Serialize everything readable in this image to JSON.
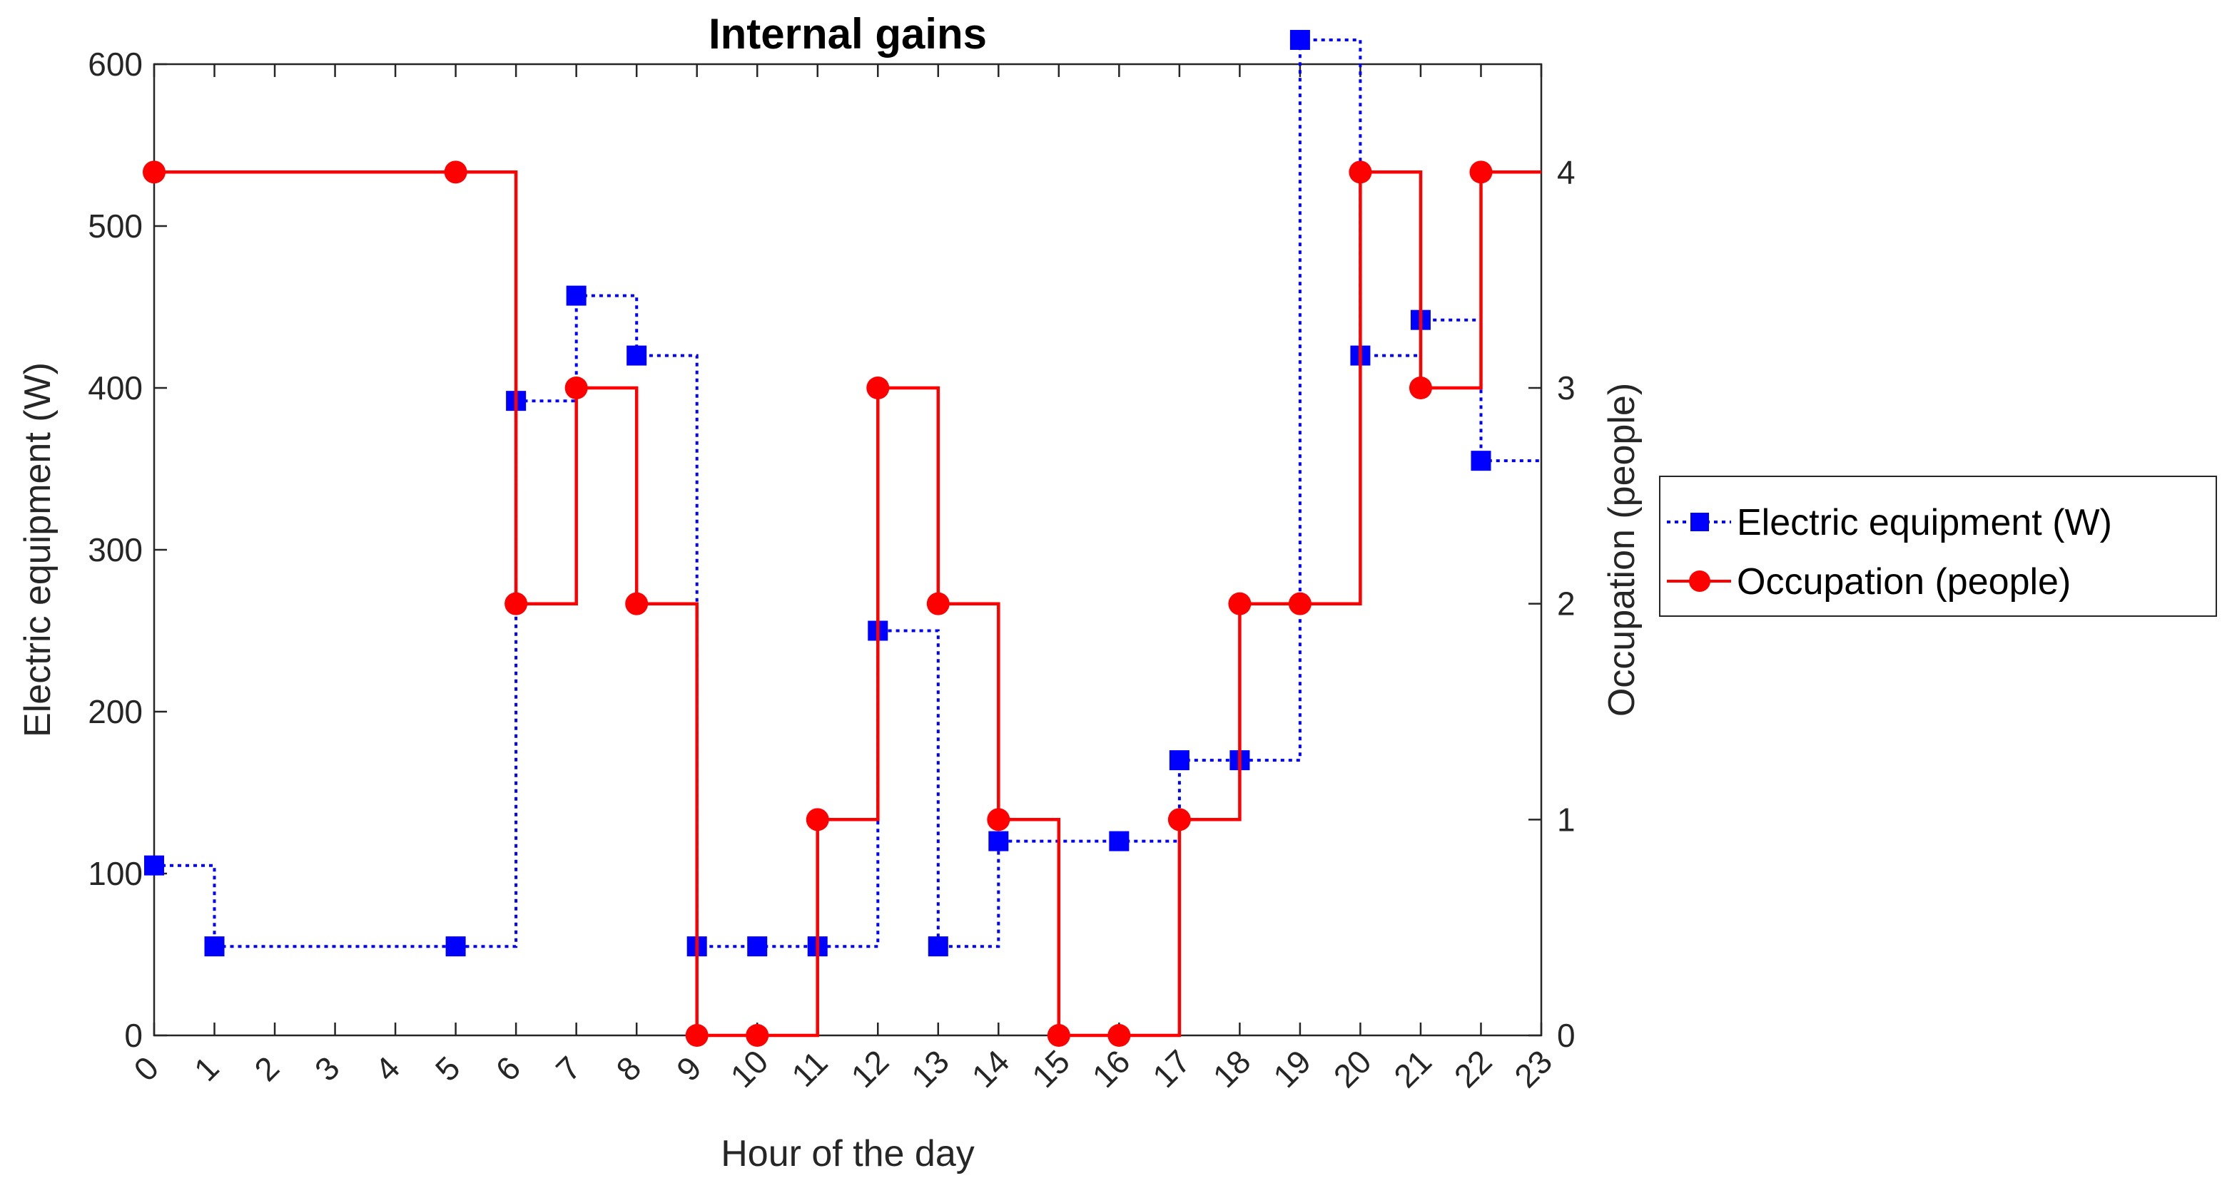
{
  "chart_data": {
    "type": "line",
    "title": "Internal gains",
    "xlabel": "Hour of the day",
    "ylabel_left": "Electric equipment (W)",
    "ylabel_right": "Occupation (people)",
    "xlim": [
      0,
      23
    ],
    "ylim_left": [
      0,
      600
    ],
    "ylim_right": [
      0,
      4.5
    ],
    "yticks_left": [
      "0",
      "100",
      "200",
      "300",
      "400",
      "500",
      "600"
    ],
    "yticks_right": [
      "0",
      "1",
      "2",
      "3",
      "4"
    ],
    "xticks": [
      "0",
      "1",
      "2",
      "3",
      "4",
      "5",
      "6",
      "7",
      "8",
      "9",
      "10",
      "11",
      "12",
      "13",
      "14",
      "15",
      "16",
      "17",
      "18",
      "19",
      "20",
      "21",
      "22",
      "23"
    ],
    "grid": false,
    "legend_position": "outside-right",
    "series": [
      {
        "name": "Electric equipment (W)",
        "axis": "left",
        "style": "dotted",
        "marker": "square",
        "color": "#0000ff",
        "hours": [
          0,
          1,
          6,
          7,
          8,
          9,
          11,
          12,
          13,
          14,
          17,
          19,
          20,
          21,
          22
        ],
        "values": [
          105,
          55,
          392,
          457,
          420,
          55,
          55,
          250,
          55,
          120,
          170,
          615,
          420,
          442,
          355
        ]
      },
      {
        "name": "Occupation (people)",
        "axis": "right",
        "style": "solid",
        "marker": "circle",
        "color": "#ff0000",
        "hours": [
          0,
          6,
          7,
          8,
          9,
          11,
          12,
          13,
          14,
          15,
          17,
          18,
          20,
          21,
          22
        ],
        "values": [
          4,
          2,
          3,
          2,
          0,
          1,
          3,
          2,
          1,
          0,
          1,
          2,
          4,
          3,
          4
        ]
      }
    ]
  }
}
